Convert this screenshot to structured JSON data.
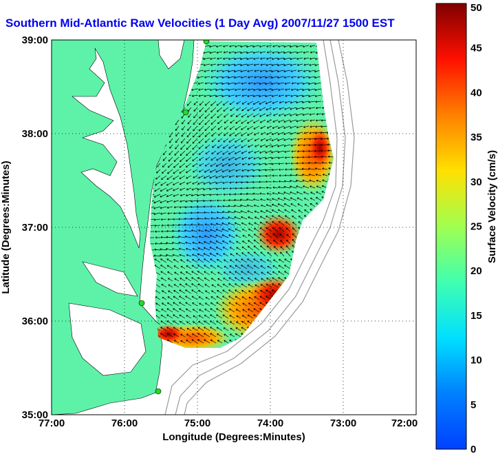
{
  "title": "Southern Mid-Atlantic Raw Velocities (1 Day Avg) 2007/11/27 1500 EST",
  "map": {
    "xlabel": "Longitude (Degrees:Minutes)",
    "ylabel": "Latitude (Degrees:Minutes)",
    "xticks": [
      "77:00",
      "76:00",
      "75:00",
      "74:00",
      "73:00",
      "72:00"
    ],
    "yticks": [
      "39:00",
      "38:00",
      "37:00",
      "36:00",
      "35:00"
    ],
    "grid": "dotted",
    "land_color": "#5ef2a8",
    "water_color": "#ffffff",
    "station_color": "#22dd22"
  },
  "colorbar": {
    "label": "Surface Velocity (cm/s)",
    "min": 0,
    "max": 50,
    "ticks": [
      "50",
      "45",
      "40",
      "35",
      "30",
      "25",
      "20",
      "15",
      "10",
      "5",
      "0"
    ]
  }
}
